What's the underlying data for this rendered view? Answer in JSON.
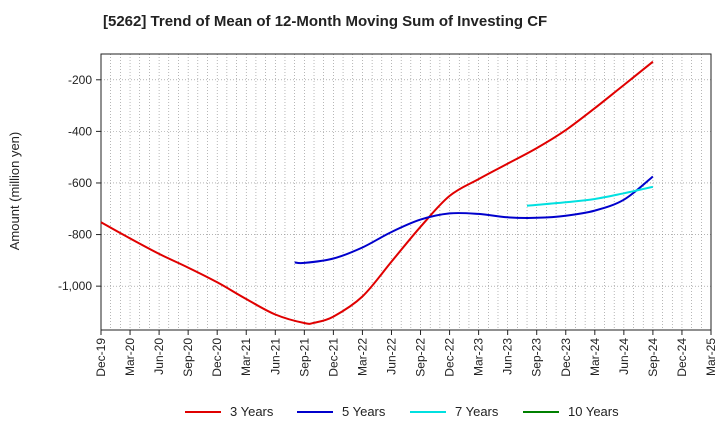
{
  "chart_data": {
    "type": "line",
    "title": "[5262]  Trend of Mean of 12-Month Moving Sum of Investing CF",
    "ylabel": "Amount (million yen)",
    "xlabel": "",
    "x_ticks": [
      "Dec-19",
      "Mar-20",
      "Jun-20",
      "Sep-20",
      "Dec-20",
      "Mar-21",
      "Jun-21",
      "Sep-21",
      "Dec-21",
      "Mar-22",
      "Jun-22",
      "Sep-22",
      "Dec-22",
      "Mar-23",
      "Jun-23",
      "Sep-23",
      "Dec-23",
      "Mar-24",
      "Jun-24",
      "Sep-24",
      "Dec-24",
      "Mar-25"
    ],
    "y_ticks": [
      -200,
      -400,
      -600,
      -800,
      -1000
    ],
    "y_tick_labels": [
      "-200",
      "-400",
      "-600",
      "-800",
      "-1,000"
    ],
    "ylim": [
      -1170,
      -100
    ],
    "grid": true,
    "legend_position": "bottom",
    "series": [
      {
        "name": "3 Years",
        "color": "#e00000",
        "x": [
          "Dec-19",
          "Mar-20",
          "Jun-20",
          "Sep-20",
          "Dec-20",
          "Mar-21",
          "Jun-21",
          "Sep-21",
          "Oct-21",
          "Dec-21",
          "Mar-22",
          "Jun-22",
          "Sep-22",
          "Dec-22",
          "Mar-23",
          "Jun-23",
          "Sep-23",
          "Dec-23",
          "Mar-24",
          "Jun-24",
          "Sep-24"
        ],
        "values": [
          -752,
          -815,
          -875,
          -928,
          -985,
          -1050,
          -1110,
          -1143,
          -1142,
          -1118,
          -1040,
          -905,
          -770,
          -650,
          -585,
          -525,
          -465,
          -395,
          -310,
          -220,
          -130
        ]
      },
      {
        "name": "5 Years",
        "color": "#0000cc",
        "x": [
          "Aug-21",
          "Sep-21",
          "Dec-21",
          "Mar-22",
          "Jun-22",
          "Sep-22",
          "Dec-22",
          "Mar-23",
          "Jun-23",
          "Sep-23",
          "Dec-23",
          "Mar-24",
          "Jun-24",
          "Sep-24"
        ],
        "values": [
          -908,
          -910,
          -893,
          -850,
          -790,
          -742,
          -718,
          -720,
          -733,
          -735,
          -727,
          -707,
          -665,
          -575
        ]
      },
      {
        "name": "7 Years",
        "color": "#00e0e0",
        "x": [
          "Aug-23",
          "Sep-23",
          "Dec-23",
          "Mar-24",
          "Jun-24",
          "Sep-24"
        ],
        "values": [
          -688,
          -685,
          -675,
          -662,
          -640,
          -615
        ]
      },
      {
        "name": "10 Years",
        "color": "#008000",
        "x": [],
        "values": []
      }
    ]
  }
}
